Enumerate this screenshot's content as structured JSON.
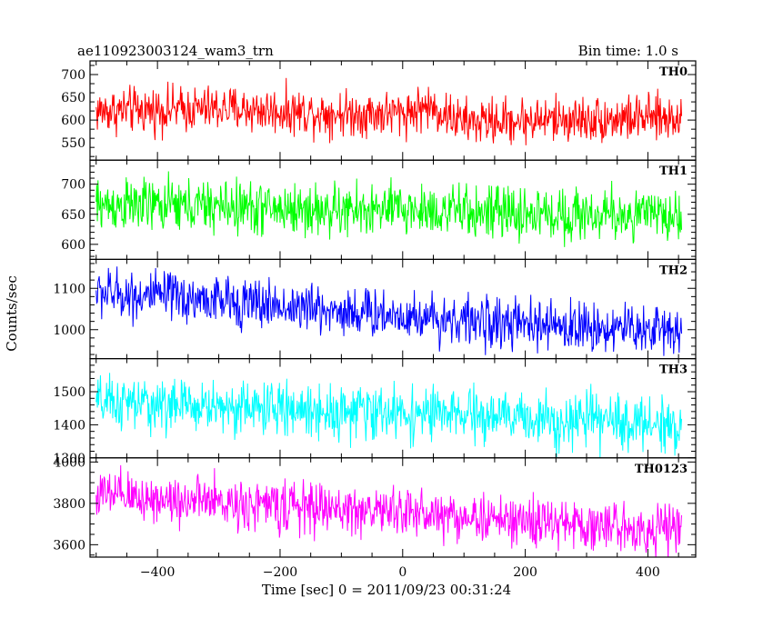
{
  "header": {
    "left": "ae110923003124_wam3_trn",
    "right": "Bin time: 1.0 s"
  },
  "chart_data": {
    "type": "line",
    "xlabel": "Time [sec] 0 = 2011/09/23 00:31:24",
    "ylabel": "Counts/sec",
    "xlim": [
      -510,
      478
    ],
    "xticks": [
      -400,
      -200,
      0,
      200,
      400
    ],
    "grid": false,
    "panels": [
      {
        "name": "TH0",
        "color": "#ff0000",
        "ylim": [
          512,
          730
        ],
        "yticks": [
          550,
          600,
          650,
          700
        ],
        "x_range": [
          -500,
          455
        ],
        "bin": 1.0,
        "trend": [
          [
            -500,
            620
          ],
          [
            -300,
            625
          ],
          [
            -100,
            615
          ],
          [
            0,
            615
          ],
          [
            40,
            630
          ],
          [
            100,
            595
          ],
          [
            200,
            600
          ],
          [
            455,
            605
          ]
        ],
        "noise": 25
      },
      {
        "name": "TH1",
        "color": "#00ff00",
        "ylim": [
          575,
          740
        ],
        "yticks": [
          600,
          650,
          700
        ],
        "x_range": [
          -500,
          455
        ],
        "bin": 1.0,
        "trend": [
          [
            -500,
            665
          ],
          [
            -300,
            663
          ],
          [
            -100,
            655
          ],
          [
            0,
            658
          ],
          [
            200,
            650
          ],
          [
            455,
            648
          ]
        ],
        "noise": 22
      },
      {
        "name": "TH2",
        "color": "#0000ff",
        "ylim": [
          930,
          1170
        ],
        "yticks": [
          1000,
          1100
        ],
        "x_range": [
          -500,
          455
        ],
        "bin": 1.0,
        "trend": [
          [
            -500,
            1090
          ],
          [
            -300,
            1070
          ],
          [
            -100,
            1045
          ],
          [
            0,
            1035
          ],
          [
            200,
            1010
          ],
          [
            455,
            1000
          ]
        ],
        "noise": 30
      },
      {
        "name": "TH3",
        "color": "#00ffff",
        "ylim": [
          1300,
          1600
        ],
        "yticks": [
          1300,
          1400,
          1500
        ],
        "x_range": [
          -500,
          455
        ],
        "bin": 1.0,
        "trend": [
          [
            -500,
            1465
          ],
          [
            -300,
            1455
          ],
          [
            -100,
            1440
          ],
          [
            0,
            1435
          ],
          [
            200,
            1420
          ],
          [
            455,
            1400
          ]
        ],
        "noise": 40
      },
      {
        "name": "TH0123",
        "color": "#ff00ff",
        "ylim": [
          3540,
          4020
        ],
        "yticks": [
          3600,
          3800,
          4000
        ],
        "x_range": [
          -500,
          455
        ],
        "bin": 1.0,
        "trend": [
          [
            -500,
            3840
          ],
          [
            -300,
            3805
          ],
          [
            -100,
            3770
          ],
          [
            0,
            3760
          ],
          [
            200,
            3710
          ],
          [
            455,
            3670
          ]
        ],
        "noise": 60
      }
    ]
  }
}
